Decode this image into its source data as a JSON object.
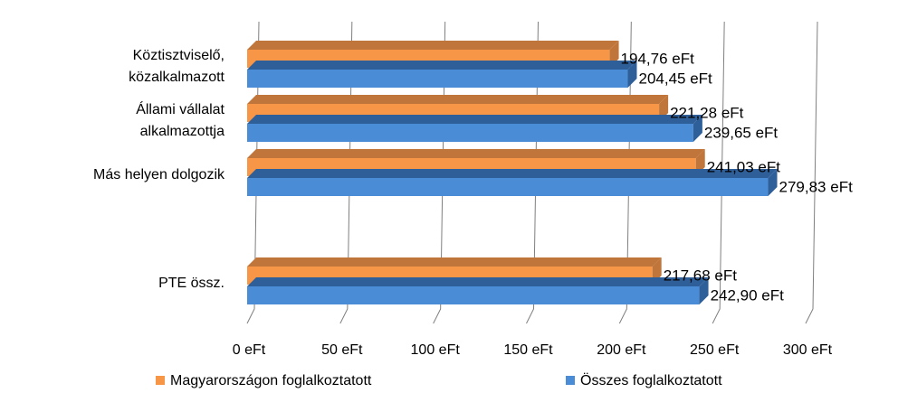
{
  "chart_data": {
    "type": "bar",
    "orientation": "horizontal",
    "three_d": true,
    "categories": [
      [
        "Köztisztviselő,",
        "közalkalmazott"
      ],
      [
        "Állami vállalat",
        "alkalmazottja"
      ],
      [
        "Más helyen dolgozik"
      ],
      [],
      [
        "PTE össz."
      ]
    ],
    "series": [
      {
        "name": "Magyarországon foglalkoztatott",
        "color": "#F79646",
        "side_color": "#C0763A",
        "values": [
          194.76,
          221.28,
          241.03,
          null,
          217.68
        ],
        "labels": [
          "194,76 eFt",
          "221,28 eFt",
          "241,03 eFt",
          "",
          "217,68 eFt"
        ]
      },
      {
        "name": "Összes foglalkoztatott",
        "color": "#4A8CD6",
        "side_color": "#2F5F99",
        "values": [
          204.45,
          239.65,
          279.83,
          null,
          242.9
        ],
        "labels": [
          "204,45 eFt",
          "239,65 eFt",
          "279,83 eFt",
          "",
          "242,90 eFt"
        ]
      }
    ],
    "xlim": [
      0,
      300
    ],
    "xticks": [
      0,
      50,
      100,
      150,
      200,
      250,
      300
    ],
    "xtick_labels": [
      "0 eFt",
      "50 eFt",
      "100 eFt",
      "150 eFt",
      "200 eFt",
      "250 eFt",
      "300 eFt"
    ],
    "grid": true,
    "legend": "bottom"
  }
}
